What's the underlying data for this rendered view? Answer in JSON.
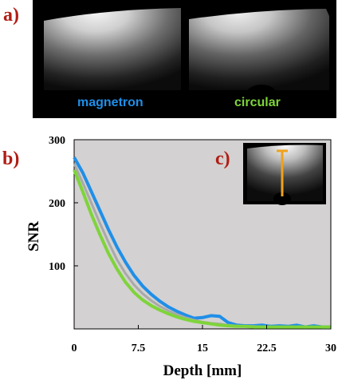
{
  "panel_labels": {
    "a": "a)",
    "b": "b)",
    "c": "c)"
  },
  "images": {
    "left_caption": "magnetron",
    "right_caption": "circular"
  },
  "colors": {
    "magnetron": "#1f8fe8",
    "circular": "#7ed43a",
    "gray_curve": "#a9a9a9",
    "plot_bg": "#d3d1d1",
    "panel_label": "#b01e14",
    "inset_marker": "#f0a21c"
  },
  "chart_data": {
    "type": "line",
    "title": "",
    "xlabel": "Depth [mm]",
    "ylabel": "SNR",
    "xlim": [
      0,
      30
    ],
    "ylim": [
      0,
      300
    ],
    "xticks": [
      "0",
      "7.5",
      "15",
      "22.5",
      "30"
    ],
    "yticks": [
      "100",
      "200",
      "300"
    ],
    "grid": false,
    "series": [
      {
        "color_key": "magnetron",
        "x": [
          0,
          1,
          2,
          3,
          4,
          5,
          6,
          7,
          8,
          9,
          10,
          11,
          12,
          13,
          14,
          15,
          16,
          17,
          18,
          19,
          20,
          21,
          22,
          23,
          24,
          25,
          26,
          27,
          28,
          29,
          30
        ],
        "values": [
          272,
          248,
          218,
          188,
          158,
          130,
          106,
          85,
          68,
          55,
          44,
          35,
          28,
          22,
          17,
          18,
          21,
          20,
          10,
          6,
          5,
          5,
          6,
          4,
          5,
          4,
          6,
          3,
          5,
          3,
          3
        ]
      },
      {
        "color_key": "gray_curve",
        "x": [
          0,
          1,
          2,
          3,
          4,
          5,
          6,
          7,
          8,
          9,
          10,
          11,
          12,
          13,
          14,
          15,
          16,
          17,
          18,
          19,
          20,
          21,
          22,
          23,
          24,
          25,
          26,
          27,
          28,
          29,
          30
        ],
        "values": [
          262,
          232,
          200,
          168,
          138,
          110,
          88,
          70,
          56,
          45,
          36,
          29,
          23,
          18,
          14,
          11,
          9,
          8,
          6,
          5,
          4,
          4,
          3,
          3,
          3,
          3,
          3,
          3,
          3,
          3,
          3
        ]
      },
      {
        "color_key": "circular",
        "x": [
          0,
          1,
          2,
          3,
          4,
          5,
          6,
          7,
          8,
          9,
          10,
          11,
          12,
          13,
          14,
          15,
          16,
          17,
          18,
          19,
          20,
          21,
          22,
          23,
          24,
          25,
          26,
          27,
          28,
          29,
          30
        ],
        "values": [
          252,
          218,
          182,
          150,
          120,
          95,
          74,
          58,
          46,
          37,
          30,
          24,
          19,
          15,
          12,
          10,
          8,
          6,
          5,
          4,
          4,
          3,
          3,
          3,
          3,
          3,
          3,
          3,
          3,
          3,
          3
        ]
      }
    ]
  }
}
